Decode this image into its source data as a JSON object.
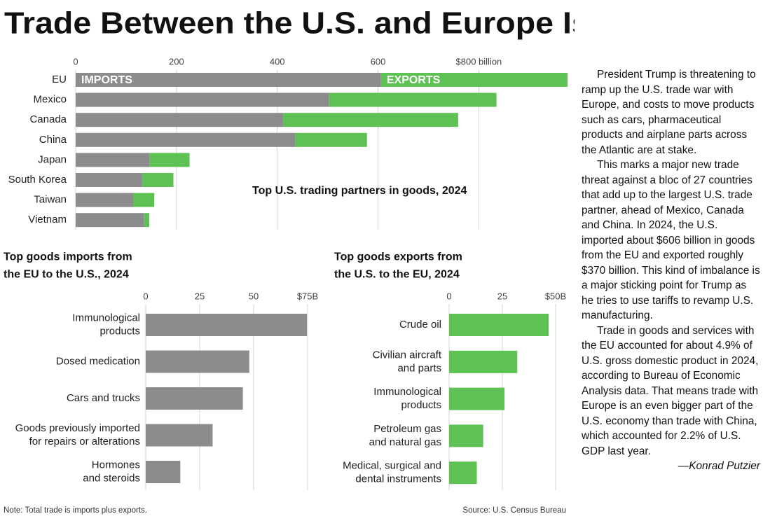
{
  "title": "Trade Between the U.S. and Europe Is Massive",
  "chart_data": [
    {
      "type": "stacked_hbar",
      "title": "Top U.S. trading partners in goods, 2024",
      "categories": [
        "EU",
        "Mexico",
        "Canada",
        "China",
        "Japan",
        "South Korea",
        "Taiwan",
        "Vietnam"
      ],
      "series": [
        {
          "name": "IMPORTS",
          "color": "#8c8c8f",
          "values": [
            606,
            503,
            412,
            436,
            147,
            132,
            114,
            136
          ]
        },
        {
          "name": "EXPORTS",
          "color": "#5ec154",
          "values": [
            370,
            332,
            347,
            142,
            79,
            62,
            42,
            10
          ]
        }
      ],
      "xlim": [
        0,
        976
      ],
      "xticks": [
        0,
        200,
        400,
        600,
        {
          "value": 800,
          "label": "$800 billion"
        }
      ],
      "grid": true
    },
    {
      "type": "hbar",
      "title": "Top goods imports from\nthe EU to the U.S., 2024",
      "categories": [
        "Immunological\nproducts",
        "Dosed medication",
        "Cars and trucks",
        "Goods previously imported\nfor repairs or alterations",
        "Hormones\nand steroids"
      ],
      "values": [
        74.7,
        48,
        45,
        31,
        16
      ],
      "color": "#8c8c8f",
      "xlim": [
        0,
        75
      ],
      "xticks": [
        0,
        25,
        50,
        {
          "value": 75,
          "label": "$75B"
        }
      ],
      "grid": true
    },
    {
      "type": "hbar",
      "title": "Top goods exports from\nthe U.S. to the EU, 2024",
      "categories": [
        "Crude oil",
        "Civilian aircraft\nand parts",
        "Immunological\nproducts",
        "Petroleum gas\nand natural gas",
        "Medical, surgical and\ndental instruments"
      ],
      "values": [
        46.7,
        32,
        26,
        16,
        13
      ],
      "color": "#5ec154",
      "xlim": [
        0,
        50
      ],
      "xticks": [
        0,
        25,
        {
          "value": 50,
          "label": "$50B"
        }
      ],
      "grid": true
    }
  ],
  "article": {
    "paragraphs": [
      "President Trump is threatening to ramp up the U.S. trade war with Europe, and costs to move products such as cars, pharmaceutical products and airplane parts across the Atlantic are at stake.",
      "This marks a major new trade threat against a bloc of 27 countries that add up to the largest U.S. trade partner, ahead of Mexico, Canada and China. In 2024, the U.S. imported about $606 billion in goods from the EU and exported roughly $370 billion. This kind of imbalance is a major sticking point for Trump as he tries to use tariffs to revamp U.S. manufacturing.",
      "Trade in goods and services with the EU accounted for about 4.9% of U.S. gross domestic product in 2024, according to Bureau of Economic Analysis data. That means trade with Europe is an even bigger part of the U.S. economy than trade with China, which accounted for 2.2% of U.S. GDP last year."
    ],
    "byline": "—Konrad Putzier"
  },
  "note": "Note: Total trade is imports plus exports.",
  "source": "Source: U.S. Census Bureau"
}
